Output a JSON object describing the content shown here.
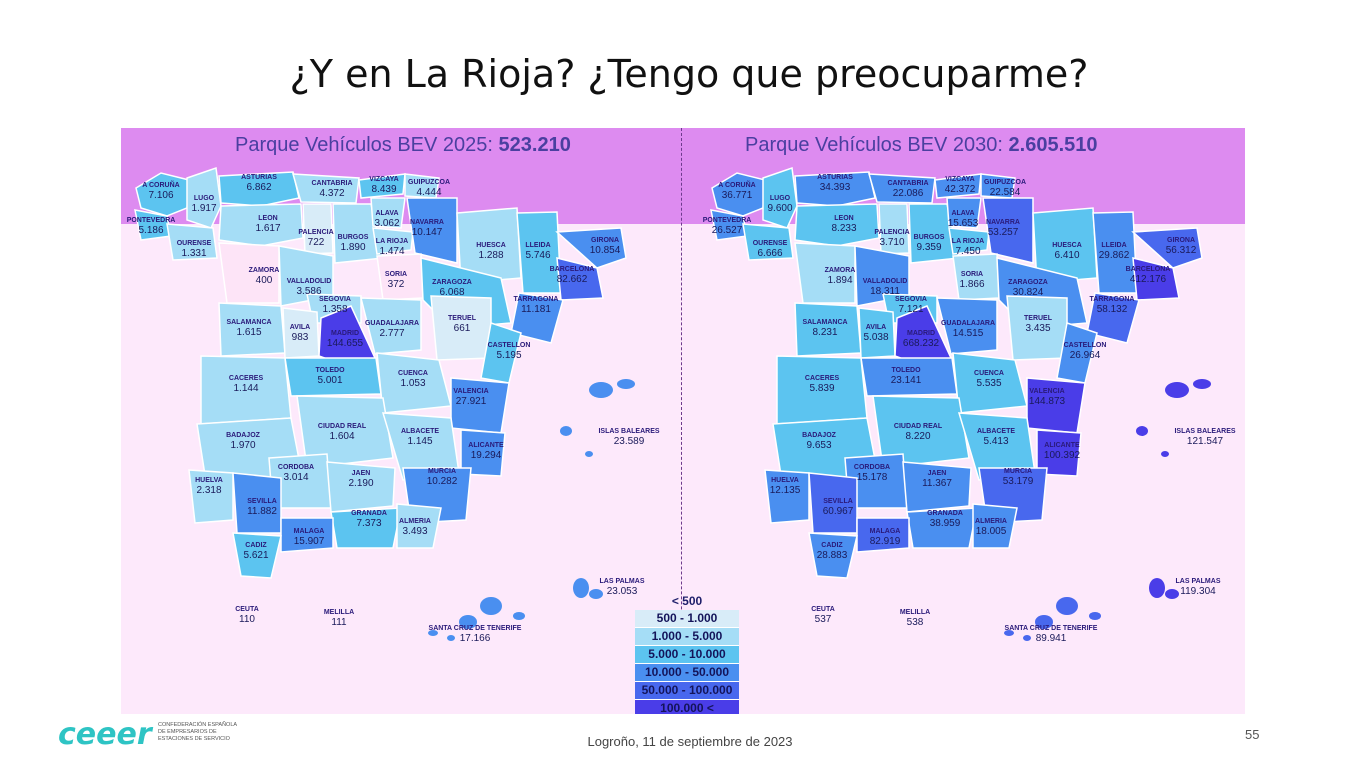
{
  "title": "¿Y en La Rioja? ¿Tengo que preocuparme?",
  "footer": "Logroño, 11 de septiembre de 2023",
  "page_number": "55",
  "logo": {
    "wordmark": "ceeer",
    "text": [
      "CONFEDERACIÓN ESPAÑOLA",
      "DE EMPRESARIOS DE",
      "ESTACIONES DE SERVICIO"
    ]
  },
  "colors": {
    "band": "#dd8bf0",
    "background": "#fde9fb",
    "title": "#4a3fa0",
    "logo": "#2ec4c4"
  },
  "legend": {
    "title": "< 500",
    "items": [
      {
        "label": "500 - 1.000",
        "color": "#d8ecf8"
      },
      {
        "label": "1.000 - 5.000",
        "color": "#a5ddf6"
      },
      {
        "label": "5.000 - 10.000",
        "color": "#5cc4f0"
      },
      {
        "label": "10.000 - 50.000",
        "color": "#4a8ff0"
      },
      {
        "label": "50.000 - 100.000",
        "color": "#4868ee"
      },
      {
        "label": "100.000 <",
        "color": "#4a3de8"
      }
    ]
  },
  "maps": [
    {
      "title_text": "Parque Vehículos BEV 2025: ",
      "title_value": "523.210",
      "provinces": [
        {
          "name": "A CORUÑA",
          "value": "7.106"
        },
        {
          "name": "LUGO",
          "value": "1.917"
        },
        {
          "name": "ASTURIAS",
          "value": "6.862"
        },
        {
          "name": "CANTABRIA",
          "value": "4.372"
        },
        {
          "name": "VIZCAYA",
          "value": "8.439"
        },
        {
          "name": "GUIPUZCOA",
          "value": "4.444"
        },
        {
          "name": "PONTEVEDRA",
          "value": "5.186"
        },
        {
          "name": "OURENSE",
          "value": "1.331"
        },
        {
          "name": "LEON",
          "value": "1.617"
        },
        {
          "name": "PALENCIA",
          "value": "722"
        },
        {
          "name": "BURGOS",
          "value": "1.890"
        },
        {
          "name": "ALAVA",
          "value": "3.062"
        },
        {
          "name": "LA RIOJA",
          "value": "1.474"
        },
        {
          "name": "NAVARRA",
          "value": "10.147"
        },
        {
          "name": "HUESCA",
          "value": "1.288"
        },
        {
          "name": "LLEIDA",
          "value": "5.746"
        },
        {
          "name": "GIRONA",
          "value": "10.854"
        },
        {
          "name": "BARCELONA",
          "value": "82.662"
        },
        {
          "name": "ZAMORA",
          "value": "400"
        },
        {
          "name": "VALLADOLID",
          "value": "3.586"
        },
        {
          "name": "SORIA",
          "value": "372"
        },
        {
          "name": "ZARAGOZA",
          "value": "6.068"
        },
        {
          "name": "TARRAGONA",
          "value": "11.181"
        },
        {
          "name": "SEGOVIA",
          "value": "1.358"
        },
        {
          "name": "SALAMANCA",
          "value": "1.615"
        },
        {
          "name": "AVILA",
          "value": "983"
        },
        {
          "name": "MADRID",
          "value": "144.655"
        },
        {
          "name": "GUADALAJARA",
          "value": "2.777"
        },
        {
          "name": "TERUEL",
          "value": "661"
        },
        {
          "name": "CASTELLON",
          "value": "5.195"
        },
        {
          "name": "TOLEDO",
          "value": "5.001"
        },
        {
          "name": "CACERES",
          "value": "1.144"
        },
        {
          "name": "CUENCA",
          "value": "1.053"
        },
        {
          "name": "VALENCIA",
          "value": "27.921"
        },
        {
          "name": "BADAJOZ",
          "value": "1.970"
        },
        {
          "name": "CIUDAD REAL",
          "value": "1.604"
        },
        {
          "name": "ALBACETE",
          "value": "1.145"
        },
        {
          "name": "ALICANTE",
          "value": "19.294"
        },
        {
          "name": "CORDOBA",
          "value": "3.014"
        },
        {
          "name": "JAEN",
          "value": "2.190"
        },
        {
          "name": "MURCIA",
          "value": "10.282"
        },
        {
          "name": "HUELVA",
          "value": "2.318"
        },
        {
          "name": "SEVILLA",
          "value": "11.882"
        },
        {
          "name": "GRANADA",
          "value": "7.373"
        },
        {
          "name": "ALMERIA",
          "value": "3.493"
        },
        {
          "name": "MALAGA",
          "value": "15.907"
        },
        {
          "name": "CADIZ",
          "value": "5.621"
        },
        {
          "name": "ISLAS BALEARES",
          "value": "23.589"
        },
        {
          "name": "LAS PALMAS",
          "value": "23.053"
        },
        {
          "name": "SANTA CRUZ DE TENERIFE",
          "value": "17.166"
        },
        {
          "name": "CEUTA",
          "value": "110"
        },
        {
          "name": "MELILLA",
          "value": "111"
        }
      ]
    },
    {
      "title_text": "Parque Vehículos BEV 2030: ",
      "title_value": "2.605.510",
      "provinces": [
        {
          "name": "A CORUÑA",
          "value": "36.771"
        },
        {
          "name": "LUGO",
          "value": "9.600"
        },
        {
          "name": "ASTURIAS",
          "value": "34.393"
        },
        {
          "name": "CANTABRIA",
          "value": "22.086"
        },
        {
          "name": "VIZCAYA",
          "value": "42.372"
        },
        {
          "name": "GUIPUZCOA",
          "value": "22.584"
        },
        {
          "name": "PONTEVEDRA",
          "value": "26.527"
        },
        {
          "name": "OURENSE",
          "value": "6.666"
        },
        {
          "name": "LEON",
          "value": "8.233"
        },
        {
          "name": "PALENCIA",
          "value": "3.710"
        },
        {
          "name": "BURGOS",
          "value": "9.359"
        },
        {
          "name": "ALAVA",
          "value": "15.653"
        },
        {
          "name": "LA RIOJA",
          "value": "7.450"
        },
        {
          "name": "NAVARRA",
          "value": "53.257"
        },
        {
          "name": "HUESCA",
          "value": "6.410"
        },
        {
          "name": "LLEIDA",
          "value": "29.862"
        },
        {
          "name": "GIRONA",
          "value": "56.312"
        },
        {
          "name": "BARCELONA",
          "value": "412.176"
        },
        {
          "name": "ZAMORA",
          "value": "1.894"
        },
        {
          "name": "VALLADOLID",
          "value": "18.311"
        },
        {
          "name": "SORIA",
          "value": "1.866"
        },
        {
          "name": "ZARAGOZA",
          "value": "30.824"
        },
        {
          "name": "TARRAGONA",
          "value": "58.132"
        },
        {
          "name": "SEGOVIA",
          "value": "7.121"
        },
        {
          "name": "SALAMANCA",
          "value": "8.231"
        },
        {
          "name": "AVILA",
          "value": "5.038"
        },
        {
          "name": "MADRID",
          "value": "668.232"
        },
        {
          "name": "GUADALAJARA",
          "value": "14.515"
        },
        {
          "name": "TERUEL",
          "value": "3.435"
        },
        {
          "name": "CASTELLON",
          "value": "26.964"
        },
        {
          "name": "TOLEDO",
          "value": "23.141"
        },
        {
          "name": "CACERES",
          "value": "5.839"
        },
        {
          "name": "CUENCA",
          "value": "5.535"
        },
        {
          "name": "VALENCIA",
          "value": "144.873"
        },
        {
          "name": "BADAJOZ",
          "value": "9.653"
        },
        {
          "name": "CIUDAD REAL",
          "value": "8.220"
        },
        {
          "name": "ALBACETE",
          "value": "5.413"
        },
        {
          "name": "ALICANTE",
          "value": "100.392"
        },
        {
          "name": "CORDOBA",
          "value": "15.178"
        },
        {
          "name": "JAEN",
          "value": "11.367"
        },
        {
          "name": "MURCIA",
          "value": "53.179"
        },
        {
          "name": "HUELVA",
          "value": "12.135"
        },
        {
          "name": "SEVILLA",
          "value": "60.967"
        },
        {
          "name": "GRANADA",
          "value": "38.959"
        },
        {
          "name": "ALMERIA",
          "value": "18.005"
        },
        {
          "name": "MALAGA",
          "value": "82.919"
        },
        {
          "name": "CADIZ",
          "value": "28.883"
        },
        {
          "name": "ISLAS BALEARES",
          "value": "121.547"
        },
        {
          "name": "LAS PALMAS",
          "value": "119.304"
        },
        {
          "name": "SANTA CRUZ DE TENERIFE",
          "value": "89.941"
        },
        {
          "name": "CEUTA",
          "value": "537"
        },
        {
          "name": "MELILLA",
          "value": "538"
        }
      ]
    }
  ]
}
